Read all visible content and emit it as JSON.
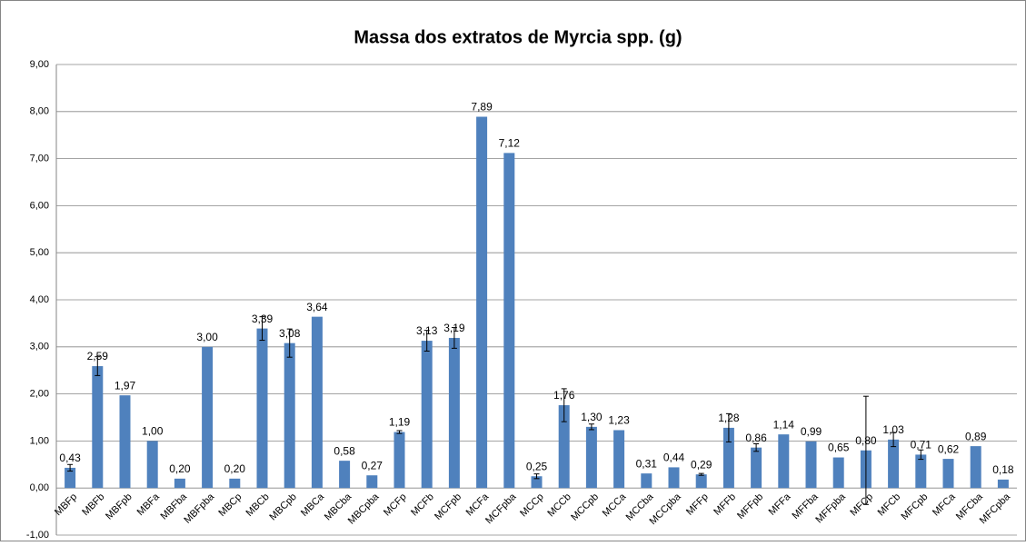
{
  "chart_data": {
    "type": "bar",
    "title": "Massa dos extratos de Myrcia spp. (g)",
    "categories": [
      "MBFp",
      "MBFb",
      "MBFpb",
      "MBFa",
      "MBFba",
      "MBFpba",
      "MBCp",
      "MBCb",
      "MBCpb",
      "MBCa",
      "MBCba",
      "MBCpba",
      "MCFp",
      "MCFb",
      "MCFpb",
      "MCFa",
      "MCFpba",
      "MCCp",
      "MCCb",
      "MCCpb",
      "MCCa",
      "MCCba",
      "MCCpba",
      "MFFp",
      "MFFb",
      "MFFpb",
      "MFFa",
      "MFFba",
      "MFFpba",
      "MFCp",
      "MFCb",
      "MFCpb",
      "MFCa",
      "MFCba",
      "MFCpba"
    ],
    "values": [
      0.43,
      2.59,
      1.97,
      1.0,
      0.2,
      3.0,
      0.2,
      3.39,
      3.08,
      3.64,
      0.58,
      0.27,
      1.19,
      3.13,
      3.19,
      7.89,
      7.12,
      0.25,
      1.76,
      1.3,
      1.23,
      0.31,
      0.44,
      0.29,
      1.28,
      0.86,
      1.14,
      0.99,
      0.65,
      0.8,
      1.03,
      0.71,
      0.62,
      0.89,
      0.18
    ],
    "value_labels": [
      "0,43",
      "2,59",
      "1,97",
      "1,00",
      "0,20",
      "3,00",
      "0,20",
      "3,39",
      "3,08",
      "3,64",
      "0,58",
      "0,27",
      "1,19",
      "3,13",
      "3,19",
      "7,89",
      "7,12",
      "0,25",
      "1,76",
      "1,30",
      "1,23",
      "0,31",
      "0,44",
      "0,29",
      "1,28",
      "0,86",
      "1,14",
      "0,99",
      "0,65",
      "0,80",
      "1,03",
      "0,71",
      "0,62",
      "0,89",
      "0,18"
    ],
    "errors": [
      0.07,
      0.2,
      0,
      0,
      0,
      0,
      0,
      0.25,
      0.3,
      0,
      0,
      0,
      0.03,
      0.22,
      0.22,
      0,
      0,
      0.05,
      0.35,
      0.06,
      0,
      0,
      0,
      0.02,
      0.3,
      0.08,
      0,
      0,
      0,
      1.15,
      0.15,
      0.1,
      0,
      0,
      0
    ],
    "color": "#4f81bd",
    "ylim": [
      -1,
      9
    ],
    "yticks": [
      {
        "value": -1,
        "label": "-1,00"
      },
      {
        "value": 0,
        "label": "0,00"
      },
      {
        "value": 1,
        "label": "1,00"
      },
      {
        "value": 2,
        "label": "2,00"
      },
      {
        "value": 3,
        "label": "3,00"
      },
      {
        "value": 4,
        "label": "4,00"
      },
      {
        "value": 5,
        "label": "5,00"
      },
      {
        "value": 6,
        "label": "6,00"
      },
      {
        "value": 7,
        "label": "7,00"
      },
      {
        "value": 8,
        "label": "8,00"
      },
      {
        "value": 9,
        "label": "9,00"
      }
    ],
    "grid": true
  }
}
